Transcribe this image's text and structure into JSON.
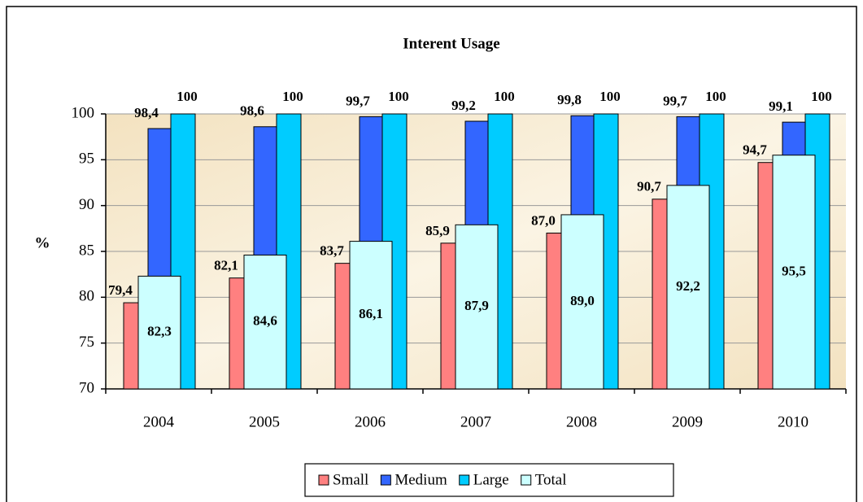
{
  "chart_data": {
    "type": "bar",
    "title": "Interent Usage",
    "y_label": "%",
    "categories": [
      "2004",
      "2005",
      "2006",
      "2007",
      "2008",
      "2009",
      "2010"
    ],
    "series": [
      {
        "name": "Small",
        "color": "#ff8080",
        "values": [
          79.4,
          82.1,
          83.7,
          85.9,
          87.0,
          90.7,
          94.7
        ],
        "value_labels": [
          "79,4",
          "82,1",
          "83,7",
          "85,9",
          "87,0",
          "90,7",
          "94,7"
        ]
      },
      {
        "name": "Medium",
        "color": "#3366ff",
        "values": [
          98.4,
          98.6,
          99.7,
          99.2,
          99.8,
          99.7,
          99.1
        ],
        "value_labels": [
          "98,4",
          "98,6",
          "99,7",
          "99,2",
          "99,8",
          "99,7",
          "99,1"
        ]
      },
      {
        "name": "Large",
        "color": "#00ccff",
        "values": [
          100,
          100,
          100,
          100,
          100,
          100,
          100
        ]
      },
      {
        "name": "Total",
        "color": "#ccffff",
        "values": [
          82.3,
          84.6,
          86.1,
          87.9,
          89.0,
          92.2,
          95.5
        ],
        "value_labels": [
          "82,3",
          "84,6",
          "86,1",
          "87,9",
          "89,0",
          "92,2",
          "95,5"
        ]
      }
    ],
    "ylim": [
      70,
      100
    ],
    "yticks": [
      70,
      75,
      80,
      85,
      90,
      95,
      100
    ],
    "grid": true,
    "legend": "bottom"
  }
}
